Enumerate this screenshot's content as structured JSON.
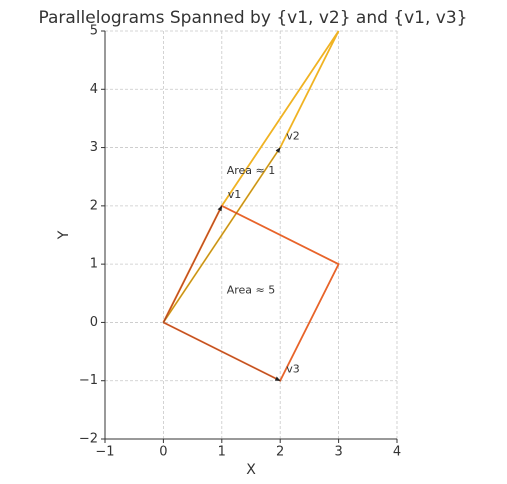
{
  "chart_data": {
    "type": "polygon",
    "title": "Parallelograms Spanned by {v1, v2} and {v1, v3}",
    "xlabel": "X",
    "ylabel": "Y",
    "xlim": [
      -1,
      4
    ],
    "ylim": [
      -2,
      5
    ],
    "xticks": [
      {
        "value": -1,
        "label": "−1"
      },
      0,
      1,
      2,
      3,
      4
    ],
    "yticks": [
      {
        "value": -2,
        "label": "−2"
      },
      {
        "value": -1,
        "label": "−1"
      },
      0,
      1,
      2,
      3,
      4,
      5
    ],
    "grid": true,
    "series": [
      {
        "color": "#f0b323",
        "x": [
          0,
          1,
          3,
          2,
          0
        ],
        "y": [
          0,
          2,
          5,
          3,
          0
        ]
      },
      {
        "color": "#e8642a",
        "x": [
          0,
          1,
          3,
          2,
          0
        ],
        "y": [
          0,
          2,
          1,
          -1,
          0
        ]
      }
    ],
    "vectors": [
      {
        "label": "v1",
        "x": 1,
        "y": 2
      },
      {
        "label": "v2",
        "x": 2,
        "y": 3
      },
      {
        "label": "v3",
        "x": 2,
        "y": -1
      }
    ],
    "annotations": [
      {
        "text": "Area ≈ 1",
        "x": 1.5,
        "y": 2.6
      },
      {
        "text": "Area ≈ 5",
        "x": 1.5,
        "y": 0.55
      }
    ]
  }
}
